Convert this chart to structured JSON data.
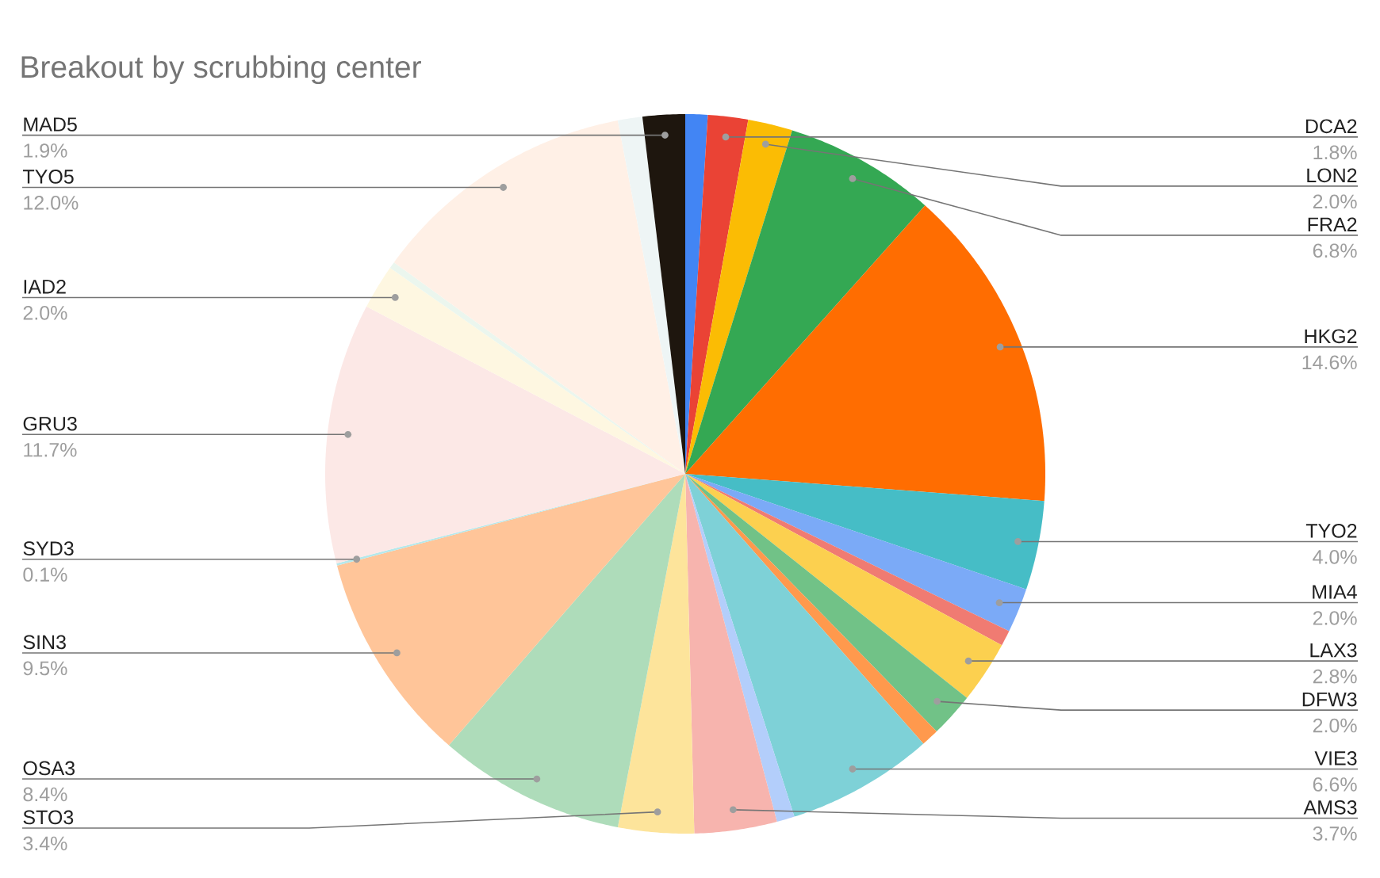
{
  "chart_data": {
    "type": "pie",
    "title": "Breakout by scrubbing center",
    "categories": [
      null,
      "DCA2",
      "LON2",
      "FRA2",
      "HKG2",
      "TYO2",
      "MIA4",
      null,
      "LAX3",
      "DFW3",
      null,
      "VIE3",
      null,
      "AMS3",
      "STO3",
      "OSA3",
      "SIN3",
      "SYD3",
      "GRU3",
      "IAD2",
      null,
      "TYO5",
      null,
      "MAD5"
    ],
    "values": [
      1.0,
      1.8,
      2.0,
      6.8,
      14.6,
      4.0,
      2.0,
      0.7,
      2.8,
      2.0,
      0.8,
      6.6,
      0.8,
      3.7,
      3.4,
      8.4,
      9.5,
      0.1,
      11.7,
      2.0,
      0.3,
      12.0,
      1.1,
      1.9
    ],
    "value_labels": [
      null,
      "1.8%",
      "2.0%",
      "6.8%",
      "14.6%",
      "4.0%",
      "2.0%",
      null,
      "2.8%",
      "2.0%",
      null,
      "6.6%",
      null,
      "3.7%",
      "3.4%",
      "8.4%",
      "9.5%",
      "0.1%",
      "11.7%",
      "2.0%",
      null,
      "12.0%",
      null,
      "1.9%"
    ],
    "colors": [
      "#4285f4",
      "#ea4335",
      "#fbbc04",
      "#34a853",
      "#ff6d01",
      "#46bdc6",
      "#7baaf7",
      "#f07b72",
      "#fcd04f",
      "#71c287",
      "#ff994d",
      "#7ed1d7",
      "#b3cefb",
      "#f7b4ae",
      "#fde49b",
      "#aedcba",
      "#ffc599",
      "#b5e8eb",
      "#fce8e6",
      "#fef7e1",
      "#ebf6ee",
      "#fff0e6",
      "#eef5f5",
      "#1e160e"
    ]
  }
}
